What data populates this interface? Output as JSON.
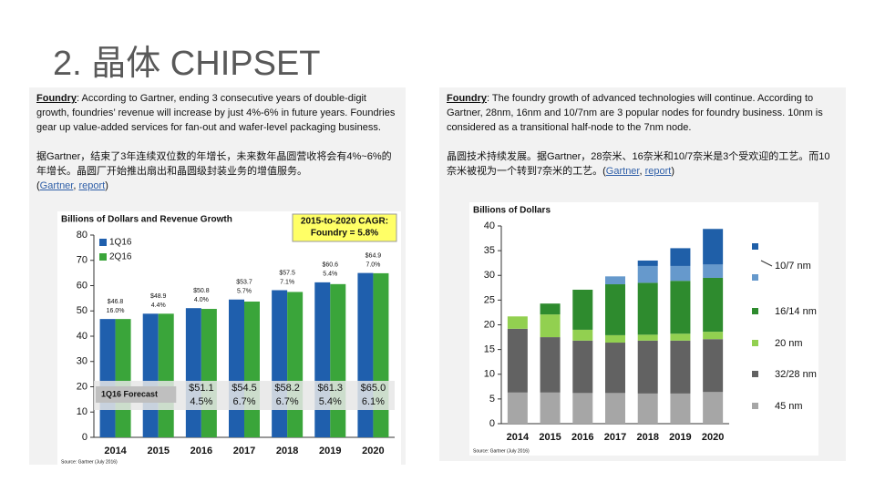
{
  "title": "2. 晶体 CHIPSET",
  "left": {
    "heading": "Foundry",
    "en": ":  According to Gartner, ending 3 consecutive years of double-digit growth, foundries’ revenue will increase by just 4%-6% in future years. Foundries gear up value-added services for fan-out and wafer-level packaging business.",
    "cn": "据Gartner，结束了3年连续双位数的年增长，未来数年晶圆营收将会有4%~6%的年增长。晶圆厂开始推出扇出和晶圆级封装业务的增值服务。",
    "cite": {
      "open": "(",
      "links": [
        "Gartner",
        "report"
      ],
      "sep": ", ",
      "close": ")"
    }
  },
  "right": {
    "heading": "Foundry",
    "en": ":  The foundry growth of advanced technologies will continue. According to Gartner, 28nm, 16nm and 10/7nm are 3 popular nodes for foundry business. 10nm is considered as a transitional half-node to the 7nm node.",
    "cn": "晶圆技术持续发展。据Gartner，28奈米、16奈米和10/7奈米是3个受欢迎的工艺。而10奈米被视为一个转到7奈米的工艺。",
    "cite": {
      "open": "(",
      "links": [
        "Gartner",
        "report"
      ],
      "sep": ",  ",
      "close": ")"
    }
  },
  "chart_data": [
    {
      "type": "bar",
      "title": "Billions of Dollars and Revenue Growth",
      "annotation": [
        "2015-to-2020 CAGR:",
        "Foundry = 5.8%"
      ],
      "categories": [
        "2014",
        "2015",
        "2016",
        "2017",
        "2018",
        "2019",
        "2020"
      ],
      "series": [
        {
          "name": "1Q16",
          "color": "#1f5fad",
          "values": [
            46.8,
            48.9,
            51.1,
            54.5,
            58.2,
            61.3,
            65.0
          ],
          "value_labels": [
            null,
            null,
            "$51.1",
            "$54.5",
            "$58.2",
            "$61.3",
            "$65.0"
          ]
        },
        {
          "name": "2Q16",
          "color": "#3aa53a",
          "values": [
            46.8,
            48.9,
            50.8,
            53.7,
            57.5,
            60.6,
            64.9
          ],
          "value_labels": [
            "$46.8",
            "$48.9",
            "$50.8",
            "$53.7",
            "$57.5",
            "$60.6",
            "$64.9"
          ]
        }
      ],
      "growth_labels": [
        "16.0%",
        "4.4%",
        "4.0%",
        "5.7%",
        "7.1%",
        "5.4%",
        "7.0%"
      ],
      "forecast_label": "1Q16 Forecast",
      "forecast_growth_labels": [
        null,
        null,
        "4.5%",
        "6.7%",
        "6.7%",
        "5.4%",
        "6.1%"
      ],
      "ylim": [
        0,
        80
      ],
      "yticks": [
        0,
        10,
        20,
        30,
        40,
        50,
        60,
        70,
        80
      ],
      "grid": false,
      "legend": "upper left",
      "source": "Source: Gartner (July 2016)"
    },
    {
      "type": "stacked_bar",
      "title": "Billions of Dollars",
      "categories": [
        "2014",
        "2015",
        "2016",
        "2017",
        "2018",
        "2019",
        "2020"
      ],
      "series": [
        {
          "name": "45 nm",
          "color": "#a6a6a6",
          "values": [
            6.3,
            6.3,
            6.2,
            6.2,
            6.1,
            6.1,
            6.4
          ]
        },
        {
          "name": "32/28 nm",
          "color": "#626262",
          "values": [
            12.9,
            11.2,
            10.6,
            10.2,
            10.7,
            10.7,
            10.7
          ]
        },
        {
          "name": "20 nm",
          "color": "#92d050",
          "values": [
            2.5,
            4.6,
            2.2,
            1.5,
            1.2,
            1.4,
            1.5
          ]
        },
        {
          "name": "16/14 nm",
          "color": "#2e8b2e",
          "values": [
            0,
            2.2,
            8.1,
            10.3,
            10.5,
            10.7,
            10.9
          ]
        },
        {
          "name": "10/7 nm",
          "color": "#6699cc",
          "values": [
            0,
            0,
            0,
            1.6,
            3.4,
            3.0,
            2.7
          ]
        },
        {
          "color": "#1f5fa8",
          "values": [
            0,
            0,
            0,
            0,
            1.1,
            3.6,
            7.2
          ]
        }
      ],
      "ylim": [
        0,
        40
      ],
      "yticks": [
        0,
        5,
        10,
        15,
        20,
        25,
        30,
        35,
        40
      ],
      "grid": false,
      "legend": "right",
      "source": "Source: Gartner (July 2016)"
    }
  ]
}
